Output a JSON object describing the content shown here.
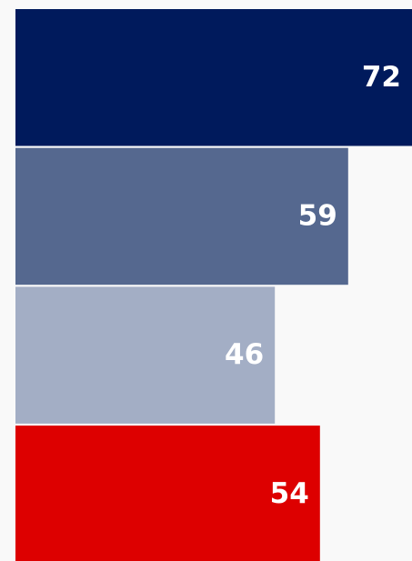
{
  "chart_data": {
    "type": "bar",
    "orientation": "horizontal",
    "categories": [
      null,
      null,
      null,
      null
    ],
    "values": [
      72,
      59,
      46,
      54
    ],
    "colors": [
      "#001a5c",
      "#55688f",
      "#a3aec5",
      "#dd0000"
    ]
  }
}
